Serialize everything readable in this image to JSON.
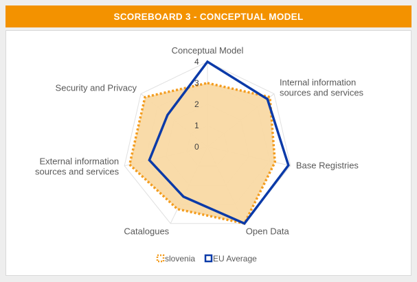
{
  "header": {
    "title": "SCOREBOARD 3 - CONCEPTUAL MODEL"
  },
  "colors": {
    "header_bg": "#f39200",
    "slovenia_line": "#f39c1e",
    "slovenia_fill": "#f9d9a4",
    "eu_line": "#0b3aa8",
    "grid": "#e0e0e0"
  },
  "chart_data": {
    "type": "radar",
    "title": "",
    "axes": [
      "Conceptual Model",
      "Internal information sources and services",
      "Base Registries",
      "Open Data",
      "Catalogues",
      "External information sources and services",
      "Security and Privacy"
    ],
    "axis_label_lines": [
      [
        "Conceptual Model"
      ],
      [
        "Internal information",
        "sources and services"
      ],
      [
        "Base Registries"
      ],
      [
        "Open Data"
      ],
      [
        "Catalogues"
      ],
      [
        "External information",
        "sources and services"
      ],
      [
        "Security and Privacy"
      ]
    ],
    "r_range": [
      0,
      4
    ],
    "ticks": [
      "0",
      "1",
      "2",
      "3",
      "4"
    ],
    "grid": true,
    "legend_position": "bottom",
    "series": [
      {
        "name": "slovenia",
        "values": [
          3,
          3.75,
          3.25,
          4,
          3.25,
          3.75,
          3.75
        ]
      },
      {
        "name": "EU Average",
        "values": [
          4,
          3.6,
          3.9,
          4,
          2.6,
          2.8,
          2.4
        ]
      }
    ]
  }
}
